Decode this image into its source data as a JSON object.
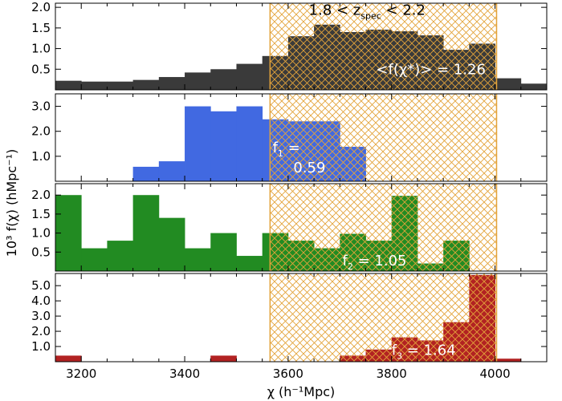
{
  "chart_data": {
    "type": "bar",
    "xlabel": "χ (h⁻¹Mpc)",
    "ylabel": "10³ f(χ) (hMpc⁻¹)",
    "xlim": [
      3150,
      4100
    ],
    "xticks": [
      "3200",
      "3400",
      "3600",
      "3800",
      "4000"
    ],
    "xtick_values": [
      3200,
      3400,
      3600,
      3800,
      4000
    ],
    "highlight": {
      "range": [
        3565,
        4003
      ],
      "label": "1.8 < z",
      "label_sub": "spec",
      "label_end": " < 2.2",
      "color": "#e3a33a"
    },
    "bin_edges": [
      3150,
      3200,
      3250,
      3300,
      3350,
      3400,
      3450,
      3500,
      3550,
      3600,
      3650,
      3700,
      3750,
      3800,
      3850,
      3900,
      3950,
      4000,
      4050,
      4100
    ],
    "panels": [
      {
        "color": "#3a3a3a",
        "ylim": [
          0,
          2.1
        ],
        "yticks": [
          "0.5",
          "1.0",
          "1.5",
          "2.0"
        ],
        "ytick_values": [
          0.5,
          1.0,
          1.5,
          2.0
        ],
        "values": [
          0.22,
          0.2,
          0.2,
          0.24,
          0.31,
          0.42,
          0.5,
          0.63,
          0.82,
          1.3,
          1.58,
          1.4,
          1.46,
          1.42,
          1.32,
          0.97,
          1.12,
          0.28,
          0.15
        ],
        "annotation": {
          "text": "<f(χ*)> = 1.26",
          "sub": "",
          "end": "",
          "color": "#ffffff",
          "value_x": 3770,
          "value_y": 0.38
        }
      },
      {
        "color": "#4169e1",
        "ylim": [
          0,
          3.5
        ],
        "yticks": [
          "1.0",
          "2.0",
          "3.0"
        ],
        "ytick_values": [
          1.0,
          2.0,
          3.0
        ],
        "values": [
          0,
          0,
          0,
          0.58,
          0.8,
          3.0,
          2.8,
          3.0,
          2.48,
          2.4,
          2.4,
          1.38,
          0,
          0,
          0,
          0,
          0,
          0,
          0
        ],
        "annotation": {
          "text": "f",
          "sub": "1",
          "end": " =",
          "color": "#ffffff",
          "value_x": 3570,
          "value_y": 1.15
        },
        "annotation2": {
          "text": "0.59",
          "color": "#ffffff",
          "value_x": 3610,
          "value_y": 0.35
        }
      },
      {
        "color": "#228b22",
        "ylim": [
          0,
          2.3
        ],
        "yticks": [
          "0.5",
          "1.0",
          "1.5",
          "2.0"
        ],
        "ytick_values": [
          0.5,
          1.0,
          1.5,
          2.0
        ],
        "values": [
          2.0,
          0.6,
          0.8,
          2.0,
          1.4,
          0.6,
          1.0,
          0.4,
          1.0,
          0.8,
          0.6,
          0.98,
          0.8,
          1.98,
          0.2,
          0.8,
          0,
          0,
          0
        ],
        "annotation": {
          "text": "f",
          "sub": "2",
          "end": " = 1.05",
          "color": "#ffffff",
          "value_x": 3705,
          "value_y": 0.15
        }
      },
      {
        "color": "#b22222",
        "ylim": [
          0,
          5.8
        ],
        "yticks": [
          "1.0",
          "2.0",
          "3.0",
          "4.0",
          "5.0"
        ],
        "ytick_values": [
          1.0,
          2.0,
          3.0,
          4.0,
          5.0
        ],
        "values": [
          0.4,
          0,
          0,
          0,
          0,
          0,
          0.4,
          0,
          0,
          0,
          0,
          0.4,
          0.8,
          1.6,
          1.4,
          2.6,
          5.7,
          0.2,
          0
        ],
        "annotation": {
          "text": "f",
          "sub": "3",
          "end": " = 1.64",
          "color": "#ffffff",
          "value_x": 3800,
          "value_y": 0.45
        }
      }
    ]
  }
}
